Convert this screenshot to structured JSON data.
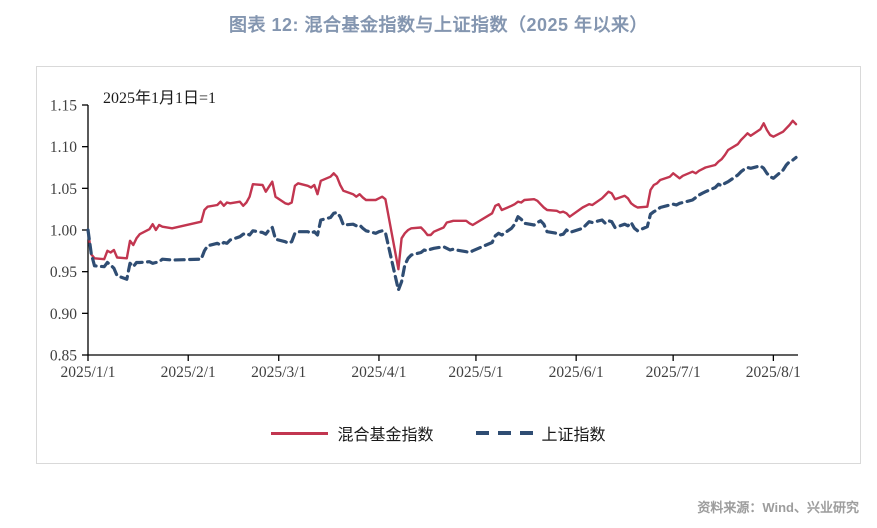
{
  "title": "图表 12: 混合基金指数与上证指数（2025 年以来）",
  "annotation": "2025年1月1日=1",
  "source": "资料来源：Wind、兴业研究",
  "colors": {
    "fund_line": "#c23650",
    "sse_line": "#2f4d73",
    "title_text": "#8496b0",
    "axis_text": "#404040",
    "axis_line": "#000000",
    "source_text": "#9d9d9d",
    "frame_border": "#d9d9d9"
  },
  "chart_data": {
    "type": "line",
    "title": "图表 12: 混合基金指数与上证指数（2025 年以来）",
    "annotation": "2025年1月1日=1",
    "ylim": [
      0.85,
      1.15
    ],
    "y_ticks": [
      0.85,
      0.9,
      0.95,
      1.0,
      1.05,
      1.1,
      1.15
    ],
    "x_ticks": [
      "2025/1/1",
      "2025/2/1",
      "2025/3/1",
      "2025/4/1",
      "2025/5/1",
      "2025/6/1",
      "2025/7/1",
      "2025/8/1"
    ],
    "grid": false,
    "legend_position": "bottom",
    "x": [
      "1/1",
      "1/2",
      "1/3",
      "1/6",
      "1/7",
      "1/8",
      "1/9",
      "1/10",
      "1/13",
      "1/14",
      "1/15",
      "1/16",
      "1/17",
      "1/20",
      "1/21",
      "1/22",
      "1/23",
      "1/24",
      "1/27",
      "2/5",
      "2/6",
      "2/7",
      "2/10",
      "2/11",
      "2/12",
      "2/13",
      "2/14",
      "2/17",
      "2/18",
      "2/19",
      "2/20",
      "2/21",
      "2/24",
      "2/25",
      "2/26",
      "2/27",
      "2/28",
      "3/3",
      "3/4",
      "3/5",
      "3/6",
      "3/7",
      "3/10",
      "3/11",
      "3/12",
      "3/13",
      "3/14",
      "3/17",
      "3/18",
      "3/19",
      "3/20",
      "3/21",
      "3/24",
      "3/25",
      "3/26",
      "3/27",
      "3/28",
      "3/31",
      "4/1",
      "4/2",
      "4/3",
      "4/7",
      "4/8",
      "4/9",
      "4/10",
      "4/11",
      "4/14",
      "4/15",
      "4/16",
      "4/17",
      "4/18",
      "4/21",
      "4/22",
      "4/23",
      "4/24",
      "4/25",
      "4/28",
      "4/29",
      "4/30",
      "5/6",
      "5/7",
      "5/8",
      "5/9",
      "5/12",
      "5/13",
      "5/14",
      "5/15",
      "5/16",
      "5/19",
      "5/20",
      "5/21",
      "5/22",
      "5/23",
      "5/26",
      "5/27",
      "5/28",
      "5/29",
      "5/30",
      "6/3",
      "6/4",
      "6/5",
      "6/6",
      "6/9",
      "6/10",
      "6/11",
      "6/12",
      "6/13",
      "6/16",
      "6/17",
      "6/18",
      "6/19",
      "6/20",
      "6/23",
      "6/24",
      "6/25",
      "6/26",
      "6/27",
      "6/30",
      "7/1",
      "7/2",
      "7/3",
      "7/4",
      "7/7",
      "7/8",
      "7/9",
      "7/10",
      "7/11",
      "7/14",
      "7/15",
      "7/16",
      "7/17",
      "7/18",
      "7/21",
      "7/22",
      "7/23",
      "7/24",
      "7/25",
      "7/28",
      "7/29",
      "7/30",
      "7/31",
      "8/1",
      "8/4",
      "8/5",
      "8/6",
      "8/7",
      "8/8"
    ],
    "series": [
      {
        "name": "混合基金指数",
        "slug": "mixed-fund-index",
        "style": "solid",
        "color": "#c23650",
        "values": [
          1.0,
          0.971,
          0.966,
          0.965,
          0.975,
          0.973,
          0.976,
          0.967,
          0.966,
          0.987,
          0.982,
          0.99,
          0.995,
          1.001,
          1.007,
          1.0,
          1.006,
          1.004,
          1.002,
          1.01,
          1.024,
          1.028,
          1.03,
          1.034,
          1.029,
          1.033,
          1.032,
          1.034,
          1.029,
          1.033,
          1.04,
          1.055,
          1.054,
          1.046,
          1.052,
          1.058,
          1.04,
          1.032,
          1.031,
          1.033,
          1.053,
          1.056,
          1.053,
          1.051,
          1.054,
          1.043,
          1.059,
          1.064,
          1.068,
          1.064,
          1.054,
          1.047,
          1.043,
          1.04,
          1.043,
          1.039,
          1.036,
          1.036,
          1.038,
          1.04,
          1.037,
          0.953,
          0.99,
          0.996,
          1.0,
          1.002,
          1.003,
          0.999,
          0.994,
          0.994,
          0.998,
          1.003,
          1.009,
          1.01,
          1.011,
          1.011,
          1.011,
          1.008,
          1.006,
          1.02,
          1.029,
          1.031,
          1.024,
          1.029,
          1.031,
          1.034,
          1.033,
          1.036,
          1.037,
          1.035,
          1.031,
          1.027,
          1.024,
          1.023,
          1.021,
          1.022,
          1.02,
          1.016,
          1.027,
          1.029,
          1.031,
          1.03,
          1.038,
          1.042,
          1.046,
          1.044,
          1.037,
          1.041,
          1.038,
          1.032,
          1.029,
          1.027,
          1.028,
          1.048,
          1.054,
          1.056,
          1.06,
          1.064,
          1.068,
          1.065,
          1.062,
          1.065,
          1.07,
          1.068,
          1.071,
          1.073,
          1.075,
          1.078,
          1.082,
          1.085,
          1.09,
          1.096,
          1.103,
          1.108,
          1.112,
          1.116,
          1.113,
          1.121,
          1.128,
          1.12,
          1.114,
          1.112,
          1.118,
          1.122,
          1.126,
          1.131,
          1.127
        ]
      },
      {
        "name": "上证指数",
        "slug": "sse-composite-index",
        "style": "dashed",
        "color": "#2f4d73",
        "values": [
          1.0,
          0.972,
          0.957,
          0.956,
          0.961,
          0.958,
          0.954,
          0.945,
          0.941,
          0.96,
          0.956,
          0.961,
          0.961,
          0.962,
          0.96,
          0.961,
          0.962,
          0.965,
          0.964,
          0.965,
          0.975,
          0.981,
          0.984,
          0.982,
          0.985,
          0.984,
          0.988,
          0.992,
          0.995,
          0.996,
          0.994,
          0.999,
          0.997,
          0.995,
          1.0,
          1.003,
          0.989,
          0.986,
          0.984,
          0.986,
          0.996,
          0.998,
          0.998,
          0.996,
          0.998,
          0.994,
          1.012,
          1.015,
          1.02,
          1.021,
          1.016,
          1.006,
          1.007,
          1.005,
          1.006,
          1.002,
          0.999,
          0.996,
          0.998,
          0.999,
          0.997,
          0.928,
          0.938,
          0.958,
          0.966,
          0.97,
          0.973,
          0.976,
          0.975,
          0.977,
          0.978,
          0.98,
          0.978,
          0.976,
          0.977,
          0.976,
          0.974,
          0.973,
          0.975,
          0.985,
          0.993,
          0.996,
          0.994,
          1.002,
          1.007,
          1.016,
          1.013,
          1.008,
          1.006,
          1.009,
          1.011,
          1.007,
          0.998,
          0.996,
          0.994,
          0.995,
          1.0,
          0.997,
          1.002,
          1.006,
          1.01,
          1.009,
          1.012,
          1.008,
          1.011,
          1.01,
          1.003,
          1.007,
          1.005,
          1.009,
          1.002,
          0.999,
          1.004,
          1.019,
          1.022,
          1.024,
          1.027,
          1.03,
          1.031,
          1.03,
          1.032,
          1.033,
          1.036,
          1.039,
          1.042,
          1.044,
          1.046,
          1.051,
          1.055,
          1.053,
          1.056,
          1.058,
          1.066,
          1.07,
          1.073,
          1.075,
          1.074,
          1.077,
          1.074,
          1.068,
          1.064,
          1.062,
          1.072,
          1.078,
          1.082,
          1.084,
          1.087
        ]
      }
    ]
  }
}
